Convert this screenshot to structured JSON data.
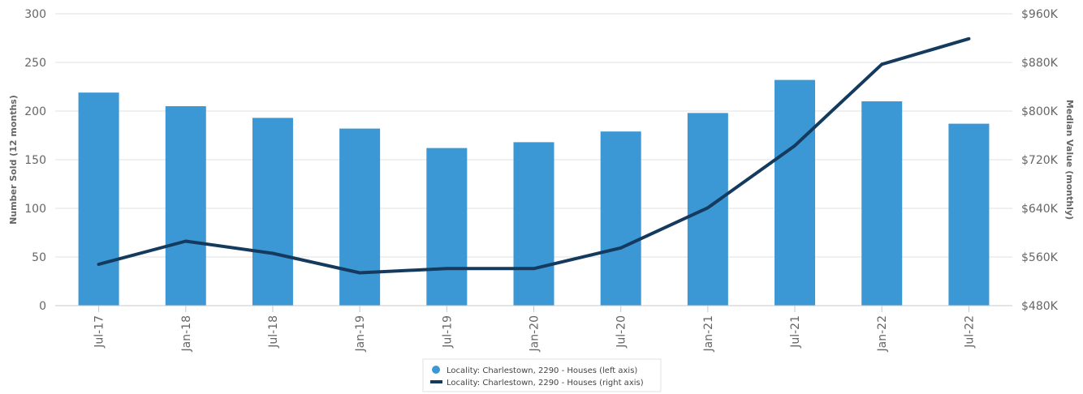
{
  "chart_data": {
    "type": "bar",
    "categories": [
      "Jul-17",
      "Jan-18",
      "Jul-18",
      "Jan-19",
      "Jul-19",
      "Jan-20",
      "Jul-20",
      "Jan-21",
      "Jul-21",
      "Jan-22",
      "Jul-22"
    ],
    "series": [
      {
        "name": "Locality: Charlestown, 2290 - Houses (left axis)",
        "type": "bar",
        "axis": "left",
        "color": "#3b98d5",
        "values": [
          219,
          205,
          193,
          182,
          162,
          168,
          179,
          198,
          232,
          210,
          187
        ]
      },
      {
        "name": "Locality: Charlestown, 2290 - Houses (right axis)",
        "type": "line",
        "axis": "right",
        "color": "#143a5e",
        "values": [
          548000,
          586000,
          566000,
          534000,
          541000,
          541000,
          575000,
          641000,
          743000,
          877000,
          919000
        ]
      }
    ],
    "ylabel": "Number Sold (12 months)",
    "y2label": "Median Value (monthly)",
    "ylim": [
      0,
      300
    ],
    "y2lim": [
      480000,
      960000
    ],
    "yticks": [
      "0",
      "50",
      "100",
      "150",
      "200",
      "250",
      "300"
    ],
    "y2ticks": [
      "$480K",
      "$560K",
      "$640K",
      "$720K",
      "$800K",
      "$880K",
      "$960K"
    ],
    "grid": true,
    "legend_position": "bottom-center"
  }
}
